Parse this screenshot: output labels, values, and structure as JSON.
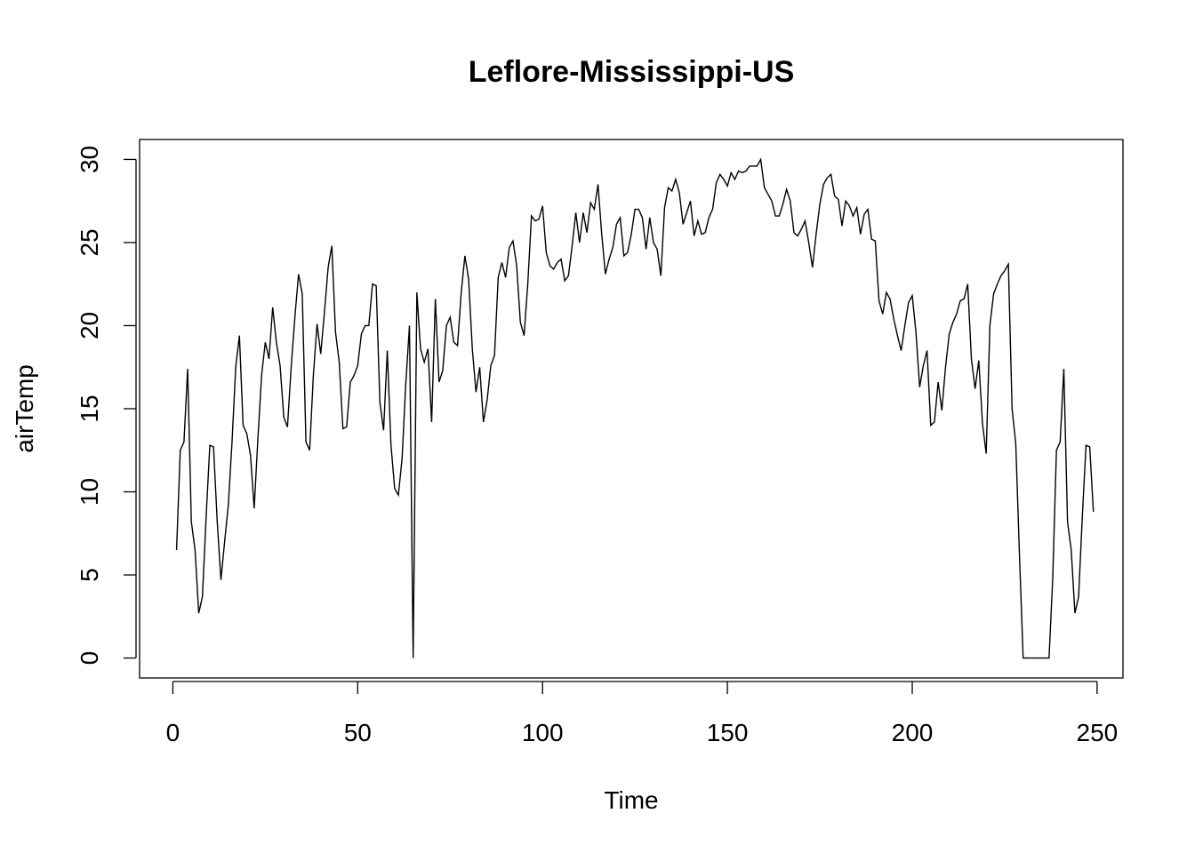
{
  "chart_data": {
    "type": "line",
    "title": "Leflore-Mississippi-US",
    "xlabel": "Time",
    "ylabel": "airTemp",
    "xlim": [
      -9,
      257
    ],
    "ylim": [
      -1.2,
      31.2
    ],
    "x_ticks": [
      0,
      50,
      100,
      150,
      200,
      250
    ],
    "x_tick_labels": [
      "0",
      "50",
      "100",
      "150",
      "200",
      "250"
    ],
    "y_ticks": [
      0,
      5,
      10,
      15,
      20,
      25,
      30
    ],
    "y_tick_labels": [
      "0",
      "5",
      "10",
      "15",
      "20",
      "25",
      "30"
    ],
    "grid": false,
    "series": [
      {
        "color": "#000000",
        "x_start": 1,
        "values": [
          6.5,
          12.5,
          13.0,
          17.4,
          8.2,
          6.5,
          2.7,
          3.7,
          8.5,
          12.8,
          12.7,
          8.2,
          4.7,
          7.0,
          9.2,
          13.0,
          17.5,
          19.4,
          14.0,
          13.5,
          12.2,
          9.0,
          13.2,
          17.0,
          19.0,
          18.0,
          21.1,
          19.0,
          17.6,
          14.5,
          13.9,
          17.5,
          20.5,
          23.1,
          21.9,
          13.0,
          12.5,
          17.0,
          20.1,
          18.3,
          20.8,
          23.5,
          24.8,
          19.6,
          17.8,
          13.8,
          13.9,
          16.6,
          17.0,
          17.6,
          19.5,
          20.0,
          20.0,
          22.5,
          22.4,
          15.4,
          13.7,
          18.5,
          12.8,
          10.2,
          9.8,
          12.0,
          16.5,
          20.0,
          0.0,
          22.0,
          18.6,
          17.8,
          18.6,
          14.2,
          21.6,
          16.6,
          17.3,
          20.0,
          20.5,
          19.0,
          18.8,
          22.0,
          24.2,
          22.8,
          18.6,
          16.0,
          17.5,
          14.2,
          15.5,
          17.6,
          18.2,
          22.9,
          23.8,
          22.9,
          24.7,
          25.1,
          23.6,
          20.2,
          19.4,
          22.5,
          26.6,
          26.3,
          26.4,
          27.2,
          24.4,
          23.6,
          23.4,
          23.8,
          24.0,
          22.7,
          23.0,
          24.8,
          26.8,
          25.0,
          26.8,
          25.6,
          27.4,
          27.0,
          28.5,
          25.5,
          23.1,
          24.0,
          24.7,
          26.1,
          26.5,
          24.2,
          24.4,
          25.5,
          27.0,
          27.0,
          26.5,
          24.6,
          26.5,
          25.0,
          24.6,
          23.0,
          27.1,
          28.3,
          28.1,
          28.8,
          28.0,
          26.1,
          26.8,
          27.5,
          25.4,
          26.3,
          25.5,
          25.6,
          26.5,
          27.0,
          28.6,
          29.1,
          28.8,
          28.4,
          29.2,
          28.8,
          29.3,
          29.2,
          29.3,
          29.6,
          29.6,
          29.6,
          30.0,
          28.3,
          27.9,
          27.5,
          26.6,
          26.6,
          27.3,
          28.2,
          27.5,
          25.6,
          25.4,
          25.8,
          26.3,
          25.0,
          23.5,
          25.5,
          27.3,
          28.5,
          28.9,
          29.1,
          27.8,
          27.6,
          26.0,
          27.5,
          27.2,
          26.6,
          27.1,
          25.5,
          26.7,
          27.0,
          25.2,
          25.1,
          21.5,
          20.7,
          22.0,
          21.6,
          20.4,
          19.4,
          18.5,
          20.0,
          21.4,
          21.8,
          19.6,
          16.3,
          17.6,
          18.5,
          14.0,
          14.2,
          16.6,
          14.9,
          17.5,
          19.5,
          20.2,
          20.7,
          21.5,
          21.6,
          22.5,
          18.0,
          16.2,
          17.9,
          14.1,
          12.3,
          20.0,
          21.9,
          22.5,
          23.0,
          23.3,
          23.7,
          15.0,
          12.9,
          6.2,
          0.0,
          0.0,
          0.0,
          0.0,
          0.0,
          0.0,
          0.0,
          0.0,
          4.8,
          12.5,
          13.0,
          17.4,
          8.2,
          6.5,
          2.7,
          3.7,
          8.5,
          12.8,
          12.7,
          8.8
        ]
      }
    ]
  }
}
